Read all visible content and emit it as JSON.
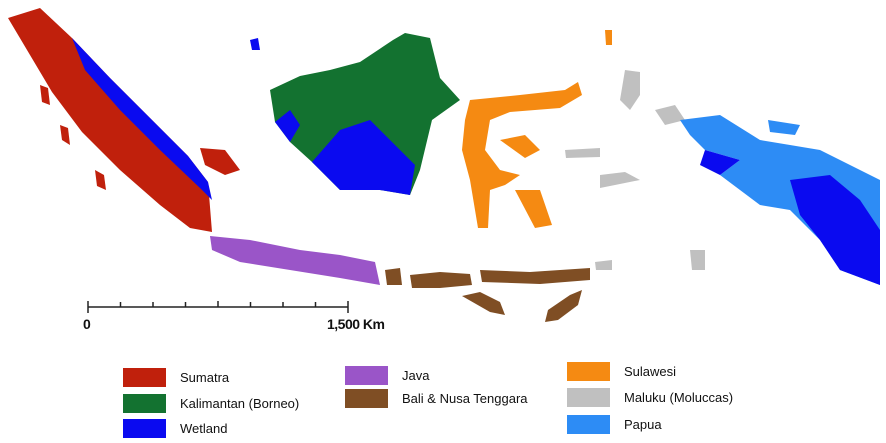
{
  "scale_bar": {
    "start_label": "0",
    "end_label": "1,500 Km"
  },
  "legend": [
    {
      "label": "Sumatra",
      "color": "#c0200c"
    },
    {
      "label": "Kalimantan (Borneo)",
      "color": "#137230"
    },
    {
      "label": "Wetland",
      "color": "#0a0af0"
    },
    {
      "label": "Java",
      "color": "#9a55c8"
    },
    {
      "label": "Bali & Nusa Tenggara",
      "color": "#7f4e24"
    },
    {
      "label": "Sulawesi",
      "color": "#f58a12"
    },
    {
      "label": "Maluku (Moluccas)",
      "color": "#c0c0c0"
    },
    {
      "label": "Papua",
      "color": "#2d8cf5"
    }
  ]
}
